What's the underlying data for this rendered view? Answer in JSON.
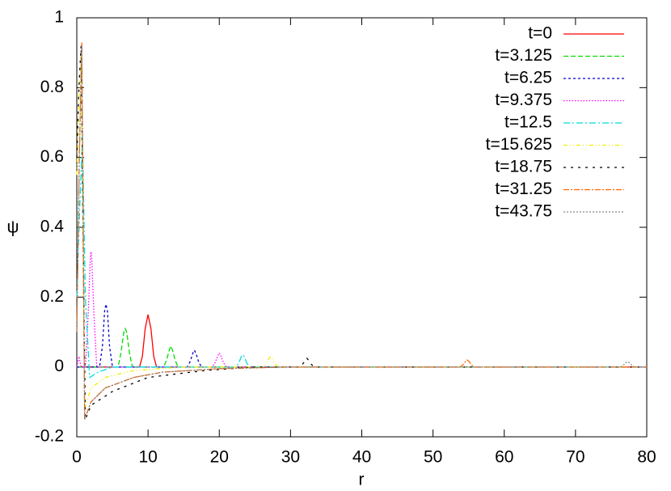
{
  "chart_data": {
    "type": "line",
    "xlabel": "r",
    "ylabel": "ψ",
    "xlim": [
      0,
      80
    ],
    "ylim": [
      -0.2,
      1
    ],
    "xticks": [
      0,
      10,
      20,
      30,
      40,
      50,
      60,
      70,
      80
    ],
    "yticks": [
      -0.2,
      0,
      0.2,
      0.4,
      0.6,
      0.8,
      1
    ],
    "legend": "upper right",
    "series": [
      {
        "name": "t=0",
        "color": "#ff0000",
        "x": [
          0,
          8.8,
          9.2,
          9.6,
          10,
          10.4,
          10.8,
          11.2,
          80
        ],
        "values": [
          0,
          0,
          0.03,
          0.11,
          0.15,
          0.11,
          0.03,
          0,
          0
        ]
      },
      {
        "name": "t=3.125",
        "color": "#00dd00",
        "x": [
          0,
          5.8,
          6.2,
          6.6,
          6.8,
          7.0,
          7.4,
          7.8,
          12.2,
          12.6,
          13.0,
          13.2,
          13.4,
          13.8,
          14.2,
          80
        ],
        "values": [
          0,
          0,
          0.04,
          0.1,
          0.11,
          0.1,
          0.04,
          0,
          0,
          0.02,
          0.05,
          0.06,
          0.05,
          0.02,
          0,
          0
        ]
      },
      {
        "name": "t=6.25",
        "color": "#0000cc",
        "x": [
          0,
          3.2,
          3.6,
          3.9,
          4.1,
          4.3,
          4.6,
          5.0,
          15.5,
          15.9,
          16.3,
          16.5,
          16.7,
          17.1,
          17.5,
          80
        ],
        "values": [
          0,
          0,
          0.06,
          0.16,
          0.18,
          0.16,
          0.06,
          0,
          0,
          0.015,
          0.04,
          0.048,
          0.04,
          0.015,
          0,
          0
        ]
      },
      {
        "name": "t=9.375",
        "color": "#ff00ff",
        "x": [
          0,
          0.3,
          0.6,
          1.2,
          1.6,
          1.9,
          2.0,
          2.1,
          2.4,
          2.8,
          19.0,
          19.4,
          19.8,
          20.0,
          20.2,
          20.6,
          21.0,
          80
        ],
        "values": [
          0,
          0.03,
          0,
          0,
          0.15,
          0.31,
          0.33,
          0.31,
          0.15,
          0,
          0,
          0.012,
          0.033,
          0.04,
          0.033,
          0.012,
          0,
          0
        ]
      },
      {
        "name": "t=12.5",
        "color": "#00dddd",
        "x": [
          0,
          0.4,
          0.8,
          1.2,
          1.8,
          3,
          5,
          22.3,
          22.7,
          23.1,
          23.3,
          23.5,
          23.9,
          24.3,
          80
        ],
        "values": [
          0.2,
          0.45,
          0.66,
          0.2,
          -0.03,
          -0.015,
          0,
          0,
          0.01,
          0.03,
          0.035,
          0.03,
          0.01,
          0,
          0
        ]
      },
      {
        "name": "t=15.625",
        "color": "#eeee00",
        "x": [
          0,
          0.3,
          0.6,
          0.9,
          1.1,
          2,
          4,
          8,
          15,
          26.2,
          26.6,
          27.0,
          27.2,
          27.4,
          27.8,
          28.2,
          80
        ],
        "values": [
          0.55,
          0.75,
          0.9,
          0.3,
          -0.12,
          -0.06,
          -0.03,
          -0.01,
          0,
          0,
          0.01,
          0.025,
          0.03,
          0.025,
          0.01,
          0,
          0
        ]
      },
      {
        "name": "t=18.75",
        "color": "#000000",
        "x": [
          0,
          0.3,
          0.6,
          0.9,
          1.2,
          2,
          5,
          10,
          18,
          25,
          31.3,
          31.7,
          32.1,
          32.3,
          32.5,
          32.9,
          33.3,
          80
        ],
        "values": [
          0.6,
          0.8,
          0.92,
          0.35,
          -0.15,
          -0.11,
          -0.07,
          -0.03,
          -0.01,
          0,
          0,
          0.008,
          0.02,
          0.025,
          0.02,
          0.008,
          0,
          0
        ]
      },
      {
        "name": "t=31.25",
        "color": "#ff6600",
        "x": [
          0,
          0.35,
          0.7,
          0.9,
          1.1,
          2,
          4,
          8,
          12,
          20,
          30,
          53.8,
          54.2,
          54.6,
          54.8,
          55.0,
          55.4,
          55.8,
          80
        ],
        "values": [
          0.1,
          0.6,
          0.93,
          0.4,
          -0.15,
          -0.1,
          -0.06,
          -0.03,
          -0.015,
          -0.005,
          0,
          0,
          0.006,
          0.017,
          0.02,
          0.017,
          0.006,
          0,
          0
        ]
      },
      {
        "name": "t=43.75",
        "color": "#888888",
        "x": [
          0,
          0.35,
          0.7,
          0.9,
          1.1,
          2,
          4,
          8,
          12,
          20,
          30,
          76.3,
          76.7,
          77.1,
          77.3,
          77.5,
          77.9,
          78.3,
          80
        ],
        "values": [
          0.1,
          0.6,
          0.92,
          0.4,
          -0.15,
          -0.1,
          -0.06,
          -0.03,
          -0.015,
          -0.005,
          0,
          0,
          0.005,
          0.013,
          0.015,
          0.013,
          0.005,
          0,
          0
        ]
      }
    ]
  }
}
